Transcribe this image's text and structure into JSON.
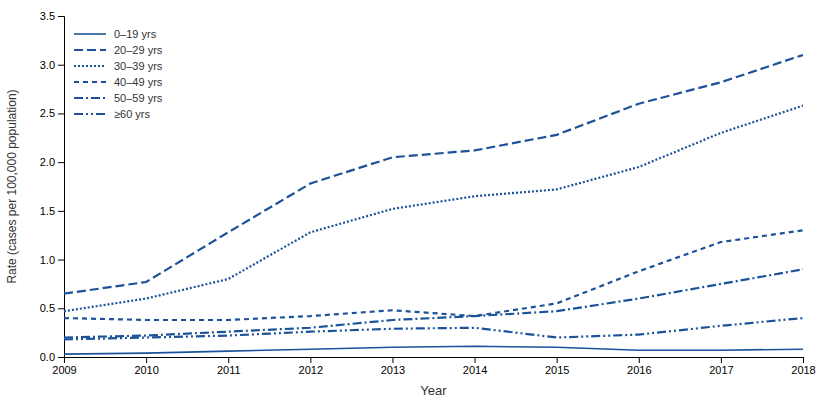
{
  "chart_data": {
    "type": "line",
    "xlabel": "Year",
    "ylabel": "Rate (cases per 100,000 population)",
    "x": [
      2009,
      2010,
      2011,
      2012,
      2013,
      2014,
      2015,
      2016,
      2017,
      2018
    ],
    "series": [
      {
        "name": "0–19 yrs",
        "color": "#1b5299",
        "line_style": "solid",
        "values": [
          0.03,
          0.04,
          0.06,
          0.08,
          0.1,
          0.11,
          0.1,
          0.07,
          0.07,
          0.08
        ]
      },
      {
        "name": "20–29 yrs",
        "color": "#1b5299",
        "line_style": "long-dash",
        "values": [
          0.65,
          0.77,
          1.28,
          1.78,
          2.05,
          2.12,
          2.28,
          2.6,
          2.82,
          3.1
        ]
      },
      {
        "name": "30–39 yrs",
        "color": "#1b5299",
        "line_style": "dotted",
        "values": [
          0.47,
          0.6,
          0.8,
          1.28,
          1.52,
          1.65,
          1.72,
          1.95,
          2.3,
          2.58
        ]
      },
      {
        "name": "40–49 yrs",
        "color": "#1b5299",
        "line_style": "dashed",
        "values": [
          0.4,
          0.38,
          0.38,
          0.42,
          0.48,
          0.42,
          0.55,
          0.88,
          1.18,
          1.3
        ]
      },
      {
        "name": "50–59 yrs",
        "color": "#1b5299",
        "line_style": "dash-dot",
        "values": [
          0.2,
          0.22,
          0.26,
          0.3,
          0.38,
          0.42,
          0.47,
          0.6,
          0.75,
          0.9
        ]
      },
      {
        "name": "≥60 yrs",
        "color": "#1b5299",
        "line_style": "dash-dot-dot",
        "values": [
          0.18,
          0.2,
          0.22,
          0.26,
          0.29,
          0.3,
          0.2,
          0.23,
          0.32,
          0.4
        ]
      }
    ],
    "xlim": [
      2009,
      2018
    ],
    "xticks": [
      2009,
      2010,
      2011,
      2012,
      2013,
      2014,
      2015,
      2016,
      2017,
      2018
    ],
    "ylim": [
      0.0,
      3.5
    ],
    "yticks": [
      {
        "value": 0.0,
        "label": "0.0"
      },
      0.5,
      {
        "value": 1.0,
        "label": "1.0"
      },
      1.5,
      {
        "value": 2.0,
        "label": "2.0"
      },
      2.5,
      {
        "value": 3.0,
        "label": "3.0"
      },
      3.5
    ],
    "legend": "upper left",
    "grid": false
  }
}
